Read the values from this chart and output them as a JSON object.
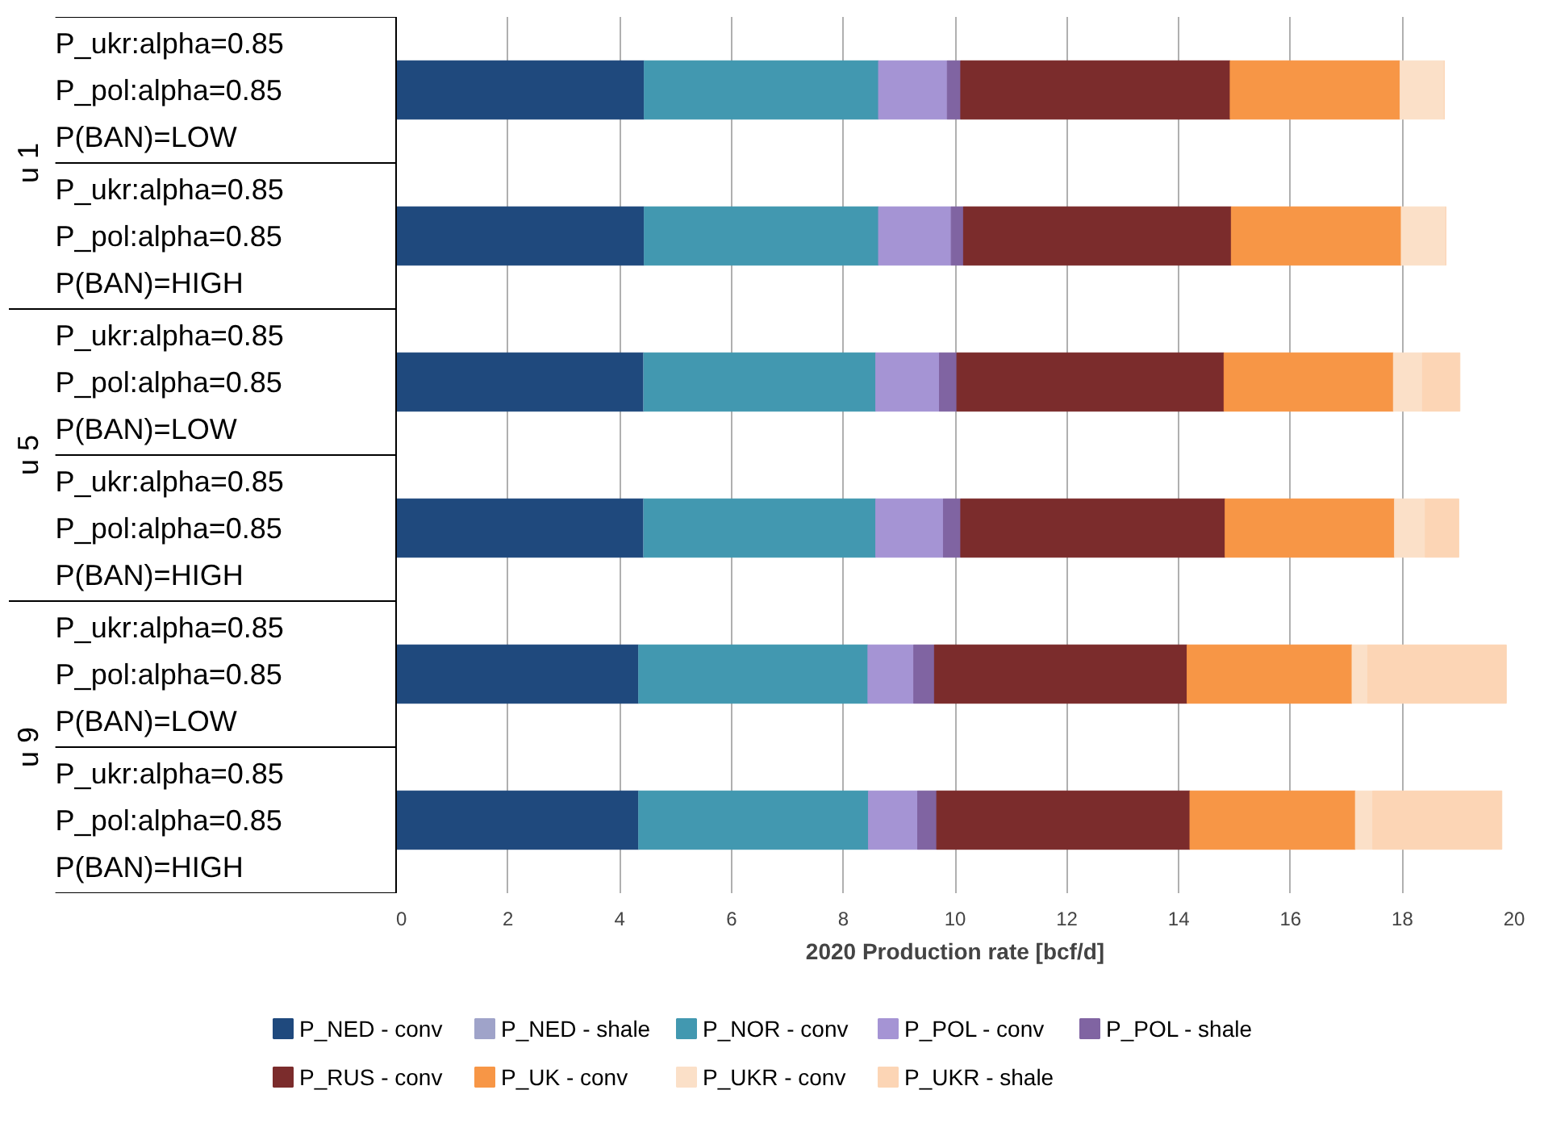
{
  "chart_data": {
    "type": "bar",
    "orientation": "horizontal",
    "stacked": true,
    "xlabel": "2020 Production rate [bcf/d]",
    "categories": [
      "P_ukr:alpha=0.85\nP_pol:alpha=0.85\nP(BAN)=LOW",
      "P_ukr:alpha=0.85\nP_pol:alpha=0.85\nP(BAN)=HIGH",
      "P_ukr:alpha=0.85\nP_pol:alpha=0.85\nP(BAN)=LOW",
      "P_ukr:alpha=0.85\nP_pol:alpha=0.85\nP(BAN)=HIGH",
      "P_ukr:alpha=0.85\nP_pol:alpha=0.85\nP(BAN)=LOW",
      "P_ukr:alpha=0.85\nP_pol:alpha=0.85\nP(BAN)=HIGH"
    ],
    "annotations": [
      "u 1",
      "u 5",
      "u 9"
    ],
    "xlim": [
      0,
      20
    ],
    "xticks": [
      0,
      2,
      4,
      6,
      8,
      10,
      12,
      14,
      16,
      18,
      20
    ],
    "grid": "x",
    "legend": "bottom",
    "series": [
      {
        "name": "P_NED - conv",
        "color": "#1f497d",
        "values": [
          4.44,
          4.44,
          4.43,
          4.43,
          4.34,
          4.34
        ]
      },
      {
        "name": "P_NED - shale",
        "color": "#9fa3c9",
        "values": [
          0,
          0,
          0,
          0,
          0,
          0
        ]
      },
      {
        "name": "P_NOR - conv",
        "color": "#4298b0",
        "values": [
          4.19,
          4.19,
          4.15,
          4.15,
          4.1,
          4.11
        ]
      },
      {
        "name": "P_POL - conv",
        "color": "#a594d4",
        "values": [
          1.23,
          1.3,
          1.14,
          1.21,
          0.82,
          0.88
        ]
      },
      {
        "name": "P_POL - shale",
        "color": "#8064a2",
        "values": [
          0.24,
          0.22,
          0.31,
          0.31,
          0.37,
          0.34
        ]
      },
      {
        "name": "P_RUS - conv",
        "color": "#7b2c2c",
        "values": [
          4.82,
          4.79,
          4.78,
          4.73,
          4.52,
          4.53
        ]
      },
      {
        "name": "P_UK - conv",
        "color": "#f79646",
        "values": [
          3.04,
          3.04,
          3.03,
          3.03,
          2.95,
          2.96
        ]
      },
      {
        "name": "P_UKR - conv",
        "color": "#fbe0c8",
        "values": [
          0.79,
          0.8,
          0.52,
          0.55,
          0.28,
          0.31
        ]
      },
      {
        "name": "P_UKR - shale",
        "color": "#fcd5b5",
        "values": [
          0,
          0,
          0.67,
          0.6,
          2.48,
          2.31
        ]
      }
    ]
  }
}
